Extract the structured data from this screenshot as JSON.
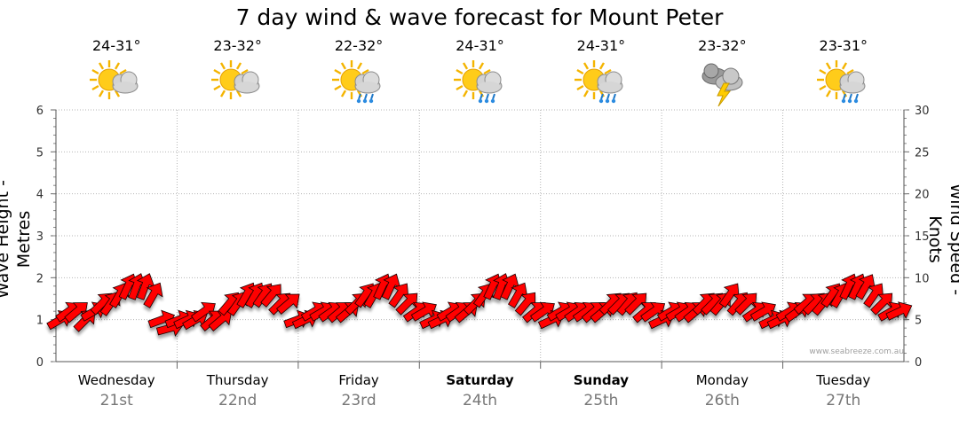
{
  "chart_data": {
    "type": "line",
    "title": "7 day wind & wave forecast for Mount Peter",
    "ylabel_left": "Wave Height - Metres",
    "ylabel_right": "Wind Speed - Knots",
    "ylim_left": [
      0,
      6
    ],
    "ylim_right": [
      0,
      30
    ],
    "yticks_left": [
      "0",
      "1",
      "2",
      "3",
      "4",
      "5",
      "6"
    ],
    "yticks_right": [
      "0",
      "5",
      "10",
      "15",
      "20",
      "25",
      "30"
    ],
    "grid": true,
    "days": [
      {
        "name": "Wednesday",
        "date": "21st",
        "temp": "24-31°",
        "weather": "partly-cloudy-icon",
        "weekend": false
      },
      {
        "name": "Thursday",
        "date": "22nd",
        "temp": "23-32°",
        "weather": "partly-cloudy-icon",
        "weekend": false
      },
      {
        "name": "Friday",
        "date": "23rd",
        "temp": "22-32°",
        "weather": "shower-icon",
        "weekend": false
      },
      {
        "name": "Saturday",
        "date": "24th",
        "temp": "24-31°",
        "weather": "shower-icon",
        "weekend": true
      },
      {
        "name": "Sunday",
        "date": "25th",
        "temp": "24-31°",
        "weather": "shower-icon",
        "weekend": true
      },
      {
        "name": "Monday",
        "date": "26th",
        "temp": "23-32°",
        "weather": "storm-icon",
        "weekend": false
      },
      {
        "name": "Tuesday",
        "date": "27th",
        "temp": "23-31°",
        "weather": "shower-icon",
        "weekend": false
      }
    ],
    "series": [
      {
        "name": "Wind Speed",
        "axis": "right",
        "values": [
          5,
          6,
          6,
          5,
          6,
          7,
          7,
          8,
          9,
          9,
          9,
          8,
          5,
          4,
          5,
          5,
          5,
          6,
          5,
          5,
          7,
          7,
          8,
          8,
          8,
          8,
          7,
          7,
          5,
          5,
          6,
          6,
          6,
          6,
          6,
          7,
          8,
          8,
          9,
          9,
          8,
          7,
          6,
          6,
          5,
          5,
          6,
          6,
          6,
          7,
          8,
          9,
          9,
          9,
          8,
          7,
          6,
          6,
          5,
          6,
          6,
          6,
          6,
          6,
          6,
          7,
          7,
          7,
          7,
          6,
          6,
          5,
          6,
          6,
          6,
          6,
          7,
          7,
          7,
          8,
          7,
          7,
          6,
          6,
          5,
          5,
          6,
          6,
          7,
          7,
          7,
          8,
          8,
          9,
          9,
          9,
          8,
          7,
          6,
          6
        ]
      }
    ],
    "wind_arrows": {
      "color": "#ff0000",
      "directions_deg": [
        240,
        235,
        230,
        225,
        240,
        225,
        215,
        210,
        205,
        200,
        200,
        210,
        250,
        255,
        250,
        245,
        240,
        235,
        230,
        230,
        220,
        215,
        210,
        210,
        215,
        220,
        225,
        230,
        250,
        245,
        240,
        240,
        235,
        230,
        230,
        225,
        215,
        210,
        205,
        205,
        215,
        225,
        235,
        240,
        245,
        245,
        240,
        235,
        230,
        225,
        215,
        205,
        200,
        205,
        210,
        220,
        230,
        235,
        245,
        240,
        240,
        235,
        235,
        230,
        230,
        225,
        225,
        220,
        225,
        230,
        235,
        245,
        240,
        240,
        235,
        230,
        225,
        225,
        220,
        215,
        220,
        225,
        235,
        240,
        245,
        245,
        240,
        235,
        230,
        225,
        220,
        215,
        210,
        205,
        205,
        210,
        215,
        225,
        240,
        245
      ]
    },
    "credit": "www.seabreeze.com.au"
  }
}
